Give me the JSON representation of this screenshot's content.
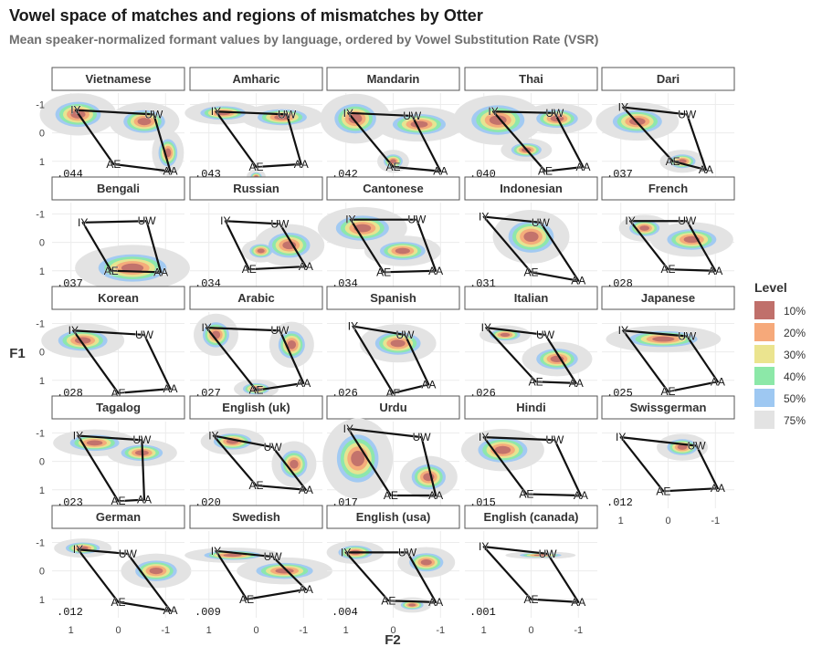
{
  "chart_data": {
    "type": "faceted-density-contour",
    "title": "Vowel space of matches and regions of mismatches by Otter",
    "subtitle": "Mean speaker-normalized formant values by language, ordered by Vowel Substitution Rate (VSR)",
    "xlabel": "F2",
    "ylabel": "F1",
    "x_ticks": [
      1,
      0,
      -1
    ],
    "y_ticks": [
      -1,
      0,
      1
    ],
    "xlim": [
      1.4,
      -1.4
    ],
    "ylim": [
      -1.4,
      1.65
    ],
    "legend": {
      "title": "Level",
      "position": "right",
      "entries": [
        {
          "label": "10%",
          "color": "#c0706b"
        },
        {
          "label": "20%",
          "color": "#f6a97a"
        },
        {
          "label": "30%",
          "color": "#ebe48f"
        },
        {
          "label": "40%",
          "color": "#8ce8a8"
        },
        {
          "label": "50%",
          "color": "#9ec8f2"
        },
        {
          "label": "75%",
          "color": "#e3e3e3"
        }
      ]
    },
    "facets": [
      {
        "language": "Vietnamese",
        "vsr": ".044",
        "vowels": {
          "IY": [
            0.9,
            -0.8
          ],
          "UW": [
            -0.75,
            -0.65
          ],
          "AA": [
            -1.1,
            1.35
          ],
          "AE": [
            0.1,
            1.1
          ]
        },
        "blobs": [
          [
            0.85,
            -0.65,
            0.6,
            0.55
          ],
          [
            -0.55,
            -0.4,
            0.55,
            0.5
          ],
          [
            -1.05,
            0.7,
            0.25,
            0.6
          ]
        ]
      },
      {
        "language": "Amharic",
        "vsr": ".043",
        "vowels": {
          "IY": [
            0.85,
            -0.75
          ],
          "UW": [
            -0.65,
            -0.65
          ],
          "AA": [
            -0.95,
            1.1
          ],
          "AE": [
            0.0,
            1.2
          ]
        },
        "blobs": [
          [
            0.7,
            -0.7,
            0.6,
            0.3
          ],
          [
            -0.55,
            -0.55,
            0.65,
            0.35
          ],
          [
            0.0,
            1.55,
            0.15,
            0.2
          ]
        ]
      },
      {
        "language": "Mandarin",
        "vsr": ".042",
        "vowels": {
          "IY": [
            0.95,
            -0.7
          ],
          "UW": [
            -0.4,
            -0.6
          ],
          "AA": [
            -1.0,
            1.35
          ],
          "AE": [
            0.0,
            1.2
          ]
        },
        "blobs": [
          [
            0.8,
            -0.5,
            0.55,
            0.65
          ],
          [
            -0.55,
            -0.3,
            0.7,
            0.45
          ],
          [
            0.0,
            1.0,
            0.25,
            0.3
          ]
        ]
      },
      {
        "language": "Thai",
        "vsr": ".040",
        "vowels": {
          "IY": [
            0.8,
            -0.75
          ],
          "UW": [
            -0.5,
            -0.7
          ],
          "AA": [
            -1.1,
            1.2
          ],
          "AE": [
            -0.3,
            1.35
          ]
        },
        "blobs": [
          [
            0.7,
            -0.45,
            0.7,
            0.65
          ],
          [
            -0.55,
            -0.5,
            0.55,
            0.4
          ],
          [
            0.1,
            0.6,
            0.4,
            0.3
          ]
        ]
      },
      {
        "language": "Dari",
        "vsr": ".037",
        "vowels": {
          "IY": [
            0.95,
            -0.9
          ],
          "UW": [
            -0.4,
            -0.65
          ],
          "AA": [
            -0.8,
            1.3
          ],
          "AE": [
            -0.1,
            1.0
          ]
        },
        "blobs": [
          [
            0.65,
            -0.4,
            0.65,
            0.5
          ],
          [
            -0.3,
            1.0,
            0.35,
            0.3
          ]
        ]
      },
      {
        "language": "Bengali",
        "vsr": ".037",
        "vowels": {
          "IY": [
            0.75,
            -0.7
          ],
          "UW": [
            -0.6,
            -0.75
          ],
          "AA": [
            -0.9,
            1.05
          ],
          "AE": [
            0.15,
            1.0
          ]
        },
        "blobs": [
          [
            -0.3,
            0.9,
            0.9,
            0.6
          ]
        ]
      },
      {
        "language": "Russian",
        "vsr": ".034",
        "vowels": {
          "IY": [
            0.65,
            -0.75
          ],
          "UW": [
            -0.5,
            -0.65
          ],
          "AA": [
            -1.05,
            0.85
          ],
          "AE": [
            0.15,
            0.95
          ]
        },
        "blobs": [
          [
            -0.7,
            0.1,
            0.55,
            0.55
          ],
          [
            -0.1,
            0.3,
            0.3,
            0.3
          ]
        ]
      },
      {
        "language": "Cantonese",
        "vsr": ".034",
        "vowels": {
          "IY": [
            0.9,
            -0.8
          ],
          "UW": [
            -0.5,
            -0.8
          ],
          "AA": [
            -0.9,
            1.0
          ],
          "AE": [
            0.2,
            1.05
          ]
        },
        "blobs": [
          [
            0.65,
            -0.5,
            0.7,
            0.55
          ],
          [
            -0.2,
            0.3,
            0.6,
            0.4
          ]
        ]
      },
      {
        "language": "Indonesian",
        "vsr": ".031",
        "vowels": {
          "IY": [
            1.0,
            -0.9
          ],
          "UW": [
            -0.2,
            -0.7
          ],
          "AA": [
            -1.0,
            1.35
          ],
          "AE": [
            0.0,
            1.05
          ]
        },
        "blobs": [
          [
            0.0,
            -0.2,
            0.6,
            0.7
          ]
        ]
      },
      {
        "language": "French",
        "vsr": ".028",
        "vowels": {
          "IY": [
            0.8,
            -0.75
          ],
          "UW": [
            -0.4,
            -0.75
          ],
          "AA": [
            -1.0,
            1.0
          ],
          "AE": [
            0.0,
            0.95
          ]
        },
        "blobs": [
          [
            -0.5,
            -0.1,
            0.65,
            0.45
          ],
          [
            0.5,
            -0.5,
            0.4,
            0.35
          ]
        ]
      },
      {
        "language": "Korean",
        "vsr": ".028",
        "vowels": {
          "IY": [
            0.95,
            -0.75
          ],
          "UW": [
            -0.55,
            -0.6
          ],
          "AA": [
            -1.1,
            1.3
          ],
          "AE": [
            0.0,
            1.45
          ]
        },
        "blobs": [
          [
            0.75,
            -0.4,
            0.65,
            0.45
          ]
        ]
      },
      {
        "language": "Arabic",
        "vsr": ".027",
        "vowels": {
          "IY": [
            1.05,
            -0.85
          ],
          "UW": [
            -0.5,
            -0.75
          ],
          "AA": [
            -1.0,
            1.1
          ],
          "AE": [
            0.0,
            1.35
          ]
        },
        "blobs": [
          [
            0.85,
            -0.6,
            0.35,
            0.55
          ],
          [
            -0.75,
            -0.25,
            0.35,
            0.6
          ],
          [
            0.0,
            1.3,
            0.35,
            0.25
          ]
        ]
      },
      {
        "language": "Spanish",
        "vsr": ".026",
        "vowels": {
          "IY": [
            0.85,
            -0.9
          ],
          "UW": [
            -0.25,
            -0.6
          ],
          "AA": [
            -0.75,
            1.15
          ],
          "AE": [
            0.0,
            1.45
          ]
        },
        "blobs": [
          [
            -0.1,
            -0.3,
            0.6,
            0.5
          ]
        ]
      },
      {
        "language": "Italian",
        "vsr": ".026",
        "vowels": {
          "IY": [
            0.95,
            -0.85
          ],
          "UW": [
            -0.3,
            -0.6
          ],
          "AA": [
            -0.95,
            1.1
          ],
          "AE": [
            -0.1,
            1.05
          ]
        },
        "blobs": [
          [
            -0.55,
            0.25,
            0.55,
            0.45
          ],
          [
            0.55,
            -0.6,
            0.4,
            0.25
          ]
        ]
      },
      {
        "language": "Japanese",
        "vsr": ".025",
        "vowels": {
          "IY": [
            0.95,
            -0.75
          ],
          "UW": [
            -0.4,
            -0.55
          ],
          "AA": [
            -1.05,
            1.05
          ],
          "AE": [
            0.0,
            1.4
          ]
        },
        "blobs": [
          [
            0.1,
            -0.45,
            0.9,
            0.35
          ]
        ]
      },
      {
        "language": "Tagalog",
        "vsr": ".023",
        "vowels": {
          "IY": [
            0.85,
            -0.9
          ],
          "UW": [
            -0.5,
            -0.75
          ],
          "AA": [
            -0.55,
            1.35
          ],
          "AE": [
            0.0,
            1.4
          ]
        },
        "blobs": [
          [
            0.5,
            -0.65,
            0.65,
            0.35
          ],
          [
            -0.5,
            -0.3,
            0.55,
            0.35
          ]
        ]
      },
      {
        "language": "English (uk)",
        "vsr": ".020",
        "vowels": {
          "IY": [
            0.9,
            -0.9
          ],
          "UW": [
            -0.35,
            -0.5
          ],
          "AA": [
            -1.05,
            1.0
          ],
          "AE": [
            0.0,
            0.85
          ]
        },
        "blobs": [
          [
            0.5,
            -0.7,
            0.5,
            0.35
          ],
          [
            -0.8,
            0.1,
            0.35,
            0.6
          ]
        ]
      },
      {
        "language": "Urdu",
        "vsr": ".017",
        "vowels": {
          "IY": [
            0.95,
            -1.15
          ],
          "UW": [
            -0.6,
            -0.85
          ],
          "AA": [
            -0.9,
            1.2
          ],
          "AE": [
            0.05,
            1.2
          ]
        },
        "blobs": [
          [
            0.75,
            -0.1,
            0.55,
            1.05
          ],
          [
            -0.75,
            0.55,
            0.45,
            0.55
          ]
        ]
      },
      {
        "language": "Hindi",
        "vsr": ".015",
        "vowels": {
          "IY": [
            1.0,
            -0.85
          ],
          "UW": [
            -0.5,
            -0.75
          ],
          "AA": [
            -1.05,
            1.2
          ],
          "AE": [
            0.1,
            1.15
          ]
        },
        "blobs": [
          [
            0.6,
            -0.4,
            0.65,
            0.55
          ]
        ]
      },
      {
        "language": "Swissgerman",
        "vsr": ".012",
        "vowels": {
          "IY": [
            1.0,
            -0.85
          ],
          "UW": [
            -0.6,
            -0.55
          ],
          "AA": [
            -1.05,
            0.95
          ],
          "AE": [
            0.1,
            1.05
          ]
        },
        "blobs": [
          [
            -0.3,
            -0.5,
            0.4,
            0.35
          ]
        ]
      },
      {
        "language": "German",
        "vsr": ".012",
        "vowels": {
          "IY": [
            0.85,
            -0.75
          ],
          "UW": [
            -0.2,
            -0.6
          ],
          "AA": [
            -1.1,
            1.4
          ],
          "AE": [
            0.0,
            1.1
          ]
        },
        "blobs": [
          [
            0.75,
            -0.8,
            0.45,
            0.25
          ],
          [
            -0.8,
            0.0,
            0.55,
            0.45
          ]
        ]
      },
      {
        "language": "Swedish",
        "vsr": ".009",
        "vowels": {
          "IY": [
            0.85,
            -0.7
          ],
          "UW": [
            -0.35,
            -0.5
          ],
          "AA": [
            -1.05,
            0.65
          ],
          "AE": [
            0.2,
            1.0
          ]
        },
        "blobs": [
          [
            0.5,
            -0.55,
            0.75,
            0.2
          ],
          [
            -0.6,
            0.0,
            0.75,
            0.35
          ]
        ]
      },
      {
        "language": "English (usa)",
        "vsr": ".004",
        "vowels": {
          "IY": [
            1.0,
            -0.65
          ],
          "UW": [
            -0.3,
            -0.65
          ],
          "AA": [
            -0.9,
            1.1
          ],
          "AE": [
            0.1,
            1.05
          ]
        },
        "blobs": [
          [
            0.8,
            -0.65,
            0.45,
            0.3
          ],
          [
            -0.7,
            -0.3,
            0.45,
            0.4
          ],
          [
            -0.4,
            1.2,
            0.3,
            0.2
          ]
        ]
      },
      {
        "language": "English (canada)",
        "vsr": ".001",
        "vowels": {
          "IY": [
            1.0,
            -0.85
          ],
          "UW": [
            -0.35,
            -0.6
          ],
          "AA": [
            -1.0,
            1.1
          ],
          "AE": [
            0.0,
            1.0
          ]
        },
        "blobs": [
          [
            -0.2,
            -0.55,
            0.55,
            0.1
          ]
        ]
      }
    ]
  }
}
